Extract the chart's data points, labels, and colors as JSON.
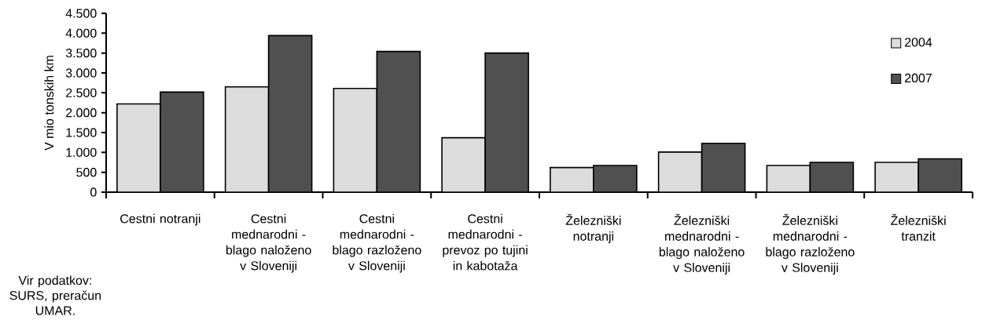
{
  "chart_data": {
    "type": "bar",
    "ylabel": "V mio tonskih km",
    "categories": [
      "Cestni notranji",
      "Cestni mednarodni - blago naloženo v Sloveniji",
      "Cestni mednarodni - blago razloženo v Sloveniji",
      "Cestni mednarodni - prevoz po tujini in kabotaža",
      "Železniški notranji",
      "Železniški mednarodni - blago naloženo v Sloveniji",
      "Železniški mednarodni - blago razloženo v Sloveniji",
      "Železniški tranzit"
    ],
    "series": [
      {
        "name": "2004",
        "color": "#dcdcdc",
        "values": [
          2220,
          2650,
          2610,
          1370,
          620,
          1010,
          670,
          750
        ]
      },
      {
        "name": "2007",
        "color": "#505050",
        "values": [
          2520,
          3940,
          3540,
          3500,
          670,
          1230,
          750,
          840
        ]
      }
    ],
    "ylim": [
      0,
      4500
    ],
    "yticks": [
      0,
      500,
      {
        "value": 1000,
        "label": "1.000"
      },
      {
        "value": 1500,
        "label": "1.500"
      },
      {
        "value": 2000,
        "label": "2.000"
      },
      {
        "value": 2500,
        "label": "2.500"
      },
      {
        "value": 3000,
        "label": "3.000"
      },
      {
        "value": 3500,
        "label": "3.500"
      },
      {
        "value": 4000,
        "label": "4.000"
      },
      {
        "value": 4500,
        "label": "4.500"
      }
    ],
    "legend": "top right",
    "grid": false,
    "annotations": [
      "Vir podatkov: SURS, preračun UMAR."
    ]
  }
}
